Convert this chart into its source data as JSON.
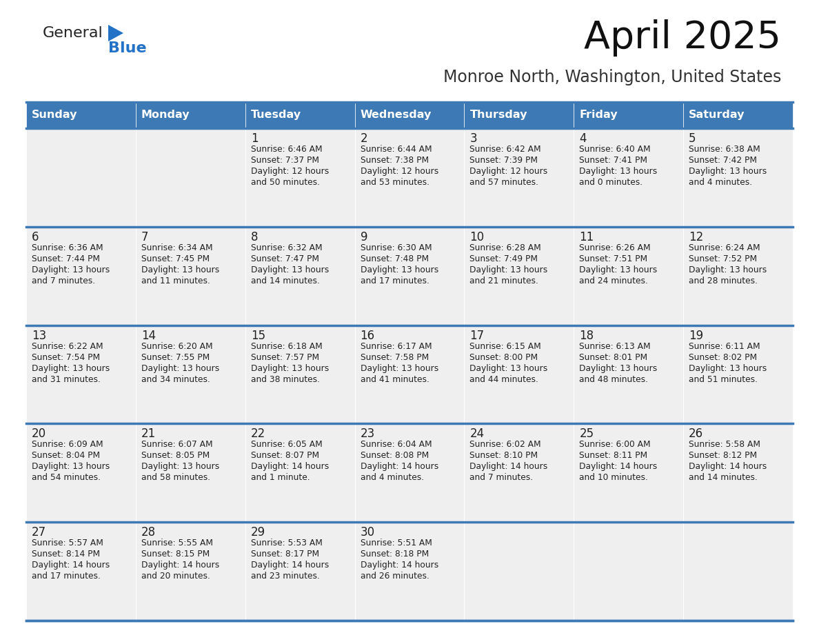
{
  "title": "April 2025",
  "subtitle": "Monroe North, Washington, United States",
  "header_color": "#3D7AB5",
  "header_text_color": "#FFFFFF",
  "cell_bg": "#EFEFEF",
  "border_color": "#3D7AB5",
  "text_color": "#222222",
  "logo_general_color": "#222222",
  "logo_blue_color": "#2472C8",
  "logo_triangle_color": "#2472C8",
  "days_of_week": [
    "Sunday",
    "Monday",
    "Tuesday",
    "Wednesday",
    "Thursday",
    "Friday",
    "Saturday"
  ],
  "weeks": [
    [
      {
        "day": "",
        "sunrise": "",
        "sunset": "",
        "daylight": ""
      },
      {
        "day": "",
        "sunrise": "",
        "sunset": "",
        "daylight": ""
      },
      {
        "day": "1",
        "sunrise": "Sunrise: 6:46 AM",
        "sunset": "Sunset: 7:37 PM",
        "daylight": "Daylight: 12 hours\nand 50 minutes."
      },
      {
        "day": "2",
        "sunrise": "Sunrise: 6:44 AM",
        "sunset": "Sunset: 7:38 PM",
        "daylight": "Daylight: 12 hours\nand 53 minutes."
      },
      {
        "day": "3",
        "sunrise": "Sunrise: 6:42 AM",
        "sunset": "Sunset: 7:39 PM",
        "daylight": "Daylight: 12 hours\nand 57 minutes."
      },
      {
        "day": "4",
        "sunrise": "Sunrise: 6:40 AM",
        "sunset": "Sunset: 7:41 PM",
        "daylight": "Daylight: 13 hours\nand 0 minutes."
      },
      {
        "day": "5",
        "sunrise": "Sunrise: 6:38 AM",
        "sunset": "Sunset: 7:42 PM",
        "daylight": "Daylight: 13 hours\nand 4 minutes."
      }
    ],
    [
      {
        "day": "6",
        "sunrise": "Sunrise: 6:36 AM",
        "sunset": "Sunset: 7:44 PM",
        "daylight": "Daylight: 13 hours\nand 7 minutes."
      },
      {
        "day": "7",
        "sunrise": "Sunrise: 6:34 AM",
        "sunset": "Sunset: 7:45 PM",
        "daylight": "Daylight: 13 hours\nand 11 minutes."
      },
      {
        "day": "8",
        "sunrise": "Sunrise: 6:32 AM",
        "sunset": "Sunset: 7:47 PM",
        "daylight": "Daylight: 13 hours\nand 14 minutes."
      },
      {
        "day": "9",
        "sunrise": "Sunrise: 6:30 AM",
        "sunset": "Sunset: 7:48 PM",
        "daylight": "Daylight: 13 hours\nand 17 minutes."
      },
      {
        "day": "10",
        "sunrise": "Sunrise: 6:28 AM",
        "sunset": "Sunset: 7:49 PM",
        "daylight": "Daylight: 13 hours\nand 21 minutes."
      },
      {
        "day": "11",
        "sunrise": "Sunrise: 6:26 AM",
        "sunset": "Sunset: 7:51 PM",
        "daylight": "Daylight: 13 hours\nand 24 minutes."
      },
      {
        "day": "12",
        "sunrise": "Sunrise: 6:24 AM",
        "sunset": "Sunset: 7:52 PM",
        "daylight": "Daylight: 13 hours\nand 28 minutes."
      }
    ],
    [
      {
        "day": "13",
        "sunrise": "Sunrise: 6:22 AM",
        "sunset": "Sunset: 7:54 PM",
        "daylight": "Daylight: 13 hours\nand 31 minutes."
      },
      {
        "day": "14",
        "sunrise": "Sunrise: 6:20 AM",
        "sunset": "Sunset: 7:55 PM",
        "daylight": "Daylight: 13 hours\nand 34 minutes."
      },
      {
        "day": "15",
        "sunrise": "Sunrise: 6:18 AM",
        "sunset": "Sunset: 7:57 PM",
        "daylight": "Daylight: 13 hours\nand 38 minutes."
      },
      {
        "day": "16",
        "sunrise": "Sunrise: 6:17 AM",
        "sunset": "Sunset: 7:58 PM",
        "daylight": "Daylight: 13 hours\nand 41 minutes."
      },
      {
        "day": "17",
        "sunrise": "Sunrise: 6:15 AM",
        "sunset": "Sunset: 8:00 PM",
        "daylight": "Daylight: 13 hours\nand 44 minutes."
      },
      {
        "day": "18",
        "sunrise": "Sunrise: 6:13 AM",
        "sunset": "Sunset: 8:01 PM",
        "daylight": "Daylight: 13 hours\nand 48 minutes."
      },
      {
        "day": "19",
        "sunrise": "Sunrise: 6:11 AM",
        "sunset": "Sunset: 8:02 PM",
        "daylight": "Daylight: 13 hours\nand 51 minutes."
      }
    ],
    [
      {
        "day": "20",
        "sunrise": "Sunrise: 6:09 AM",
        "sunset": "Sunset: 8:04 PM",
        "daylight": "Daylight: 13 hours\nand 54 minutes."
      },
      {
        "day": "21",
        "sunrise": "Sunrise: 6:07 AM",
        "sunset": "Sunset: 8:05 PM",
        "daylight": "Daylight: 13 hours\nand 58 minutes."
      },
      {
        "day": "22",
        "sunrise": "Sunrise: 6:05 AM",
        "sunset": "Sunset: 8:07 PM",
        "daylight": "Daylight: 14 hours\nand 1 minute."
      },
      {
        "day": "23",
        "sunrise": "Sunrise: 6:04 AM",
        "sunset": "Sunset: 8:08 PM",
        "daylight": "Daylight: 14 hours\nand 4 minutes."
      },
      {
        "day": "24",
        "sunrise": "Sunrise: 6:02 AM",
        "sunset": "Sunset: 8:10 PM",
        "daylight": "Daylight: 14 hours\nand 7 minutes."
      },
      {
        "day": "25",
        "sunrise": "Sunrise: 6:00 AM",
        "sunset": "Sunset: 8:11 PM",
        "daylight": "Daylight: 14 hours\nand 10 minutes."
      },
      {
        "day": "26",
        "sunrise": "Sunrise: 5:58 AM",
        "sunset": "Sunset: 8:12 PM",
        "daylight": "Daylight: 14 hours\nand 14 minutes."
      }
    ],
    [
      {
        "day": "27",
        "sunrise": "Sunrise: 5:57 AM",
        "sunset": "Sunset: 8:14 PM",
        "daylight": "Daylight: 14 hours\nand 17 minutes."
      },
      {
        "day": "28",
        "sunrise": "Sunrise: 5:55 AM",
        "sunset": "Sunset: 8:15 PM",
        "daylight": "Daylight: 14 hours\nand 20 minutes."
      },
      {
        "day": "29",
        "sunrise": "Sunrise: 5:53 AM",
        "sunset": "Sunset: 8:17 PM",
        "daylight": "Daylight: 14 hours\nand 23 minutes."
      },
      {
        "day": "30",
        "sunrise": "Sunrise: 5:51 AM",
        "sunset": "Sunset: 8:18 PM",
        "daylight": "Daylight: 14 hours\nand 26 minutes."
      },
      {
        "day": "",
        "sunrise": "",
        "sunset": "",
        "daylight": ""
      },
      {
        "day": "",
        "sunrise": "",
        "sunset": "",
        "daylight": ""
      },
      {
        "day": "",
        "sunrise": "",
        "sunset": "",
        "daylight": ""
      }
    ]
  ]
}
